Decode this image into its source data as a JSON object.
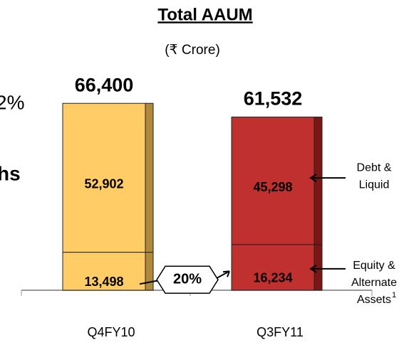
{
  "chart_data": {
    "type": "stacked_bar",
    "title": "Total AAUM",
    "subtitle": "(₹ Crore)",
    "categories": [
      "Q4FY10",
      "Q3FY11"
    ],
    "category_colors": [
      "#FFCC66",
      "#C0302E"
    ],
    "category_side_colors": [
      "#B08A3A",
      "#7A1616"
    ],
    "series": [
      {
        "name": "Equity & Alternate Assets",
        "values": [
          13498,
          16234
        ],
        "value_labels": [
          "13,498",
          "16,234"
        ]
      },
      {
        "name": "Debt & Liquid",
        "values": [
          52902,
          45298
        ],
        "value_labels": [
          "52,902",
          "45,298"
        ]
      }
    ],
    "totals": [
      66400,
      61532
    ],
    "total_labels": [
      "66,400",
      "61,532"
    ],
    "legend_label_lines": [
      [
        "Equity &",
        "Alternate",
        "Assets"
      ],
      [
        "Debt &",
        "Liquid"
      ]
    ],
    "footnote_mark": "1",
    "growth_annotation": "20%",
    "cropped_fragments": [
      "2%",
      "hs"
    ],
    "ylim": [
      0,
      70000
    ]
  }
}
